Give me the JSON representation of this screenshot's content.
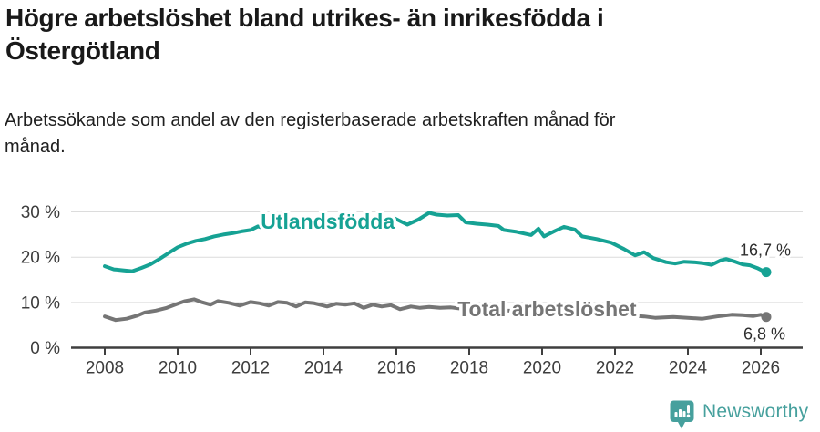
{
  "header": {
    "title": "Högre arbetslöshet bland utrikes- än inrikesfödda i Östergötland",
    "title_lines": [
      "Högre arbetslöshet bland utrikes- än inrikesfödda i",
      "Östergötland"
    ],
    "subtitle": "Arbetssökande som andel av den registerbaserade arbetskraften månad för månad.",
    "subtitle_lines": [
      "Arbetssökande som andel av den registerbaserade arbetskraften månad för",
      "månad."
    ]
  },
  "colors": {
    "teal": "#16a294",
    "gray": "#757575",
    "axis_text": "#3d3d3d",
    "axis_line": "#3f3f3f",
    "gridline": "#dcdcdc",
    "logo_teal": "#46a09d"
  },
  "footer": {
    "brand": "Newsworthy",
    "logo_icon": "bar-chart-speech-bubble-icon"
  },
  "chart_data": {
    "type": "line",
    "title": "",
    "xlabel": "",
    "ylabel": "",
    "grid": "horizontal",
    "xlim": [
      2007.3,
      2027.1
    ],
    "ylim": [
      0,
      33
    ],
    "x_ticks": [
      {
        "value": 2008,
        "label": "2008"
      },
      {
        "value": 2010,
        "label": "2010"
      },
      {
        "value": 2012,
        "label": "2012"
      },
      {
        "value": 2014,
        "label": "2014"
      },
      {
        "value": 2016,
        "label": "2016"
      },
      {
        "value": 2018,
        "label": "2018"
      },
      {
        "value": 2020,
        "label": "2020"
      },
      {
        "value": 2022,
        "label": "2022"
      },
      {
        "value": 2024,
        "label": "2024"
      },
      {
        "value": 2026,
        "label": "2026"
      }
    ],
    "y_ticks": [
      {
        "value": 0,
        "label": "0 %"
      },
      {
        "value": 10,
        "label": "10 %"
      },
      {
        "value": 20,
        "label": "20 %"
      },
      {
        "value": 30,
        "label": "30 %"
      }
    ],
    "series": [
      {
        "name": "Utlandsfödda",
        "color": "#16a294",
        "end_label": "16,7 %",
        "end_value": 16.7,
        "label_at": [
          2012.28,
          26.3
        ],
        "points": [
          [
            2008.0,
            18.0
          ],
          [
            2008.25,
            17.3
          ],
          [
            2008.5,
            17.1
          ],
          [
            2008.75,
            16.9
          ],
          [
            2009.0,
            17.6
          ],
          [
            2009.25,
            18.4
          ],
          [
            2009.5,
            19.6
          ],
          [
            2009.75,
            20.9
          ],
          [
            2010.0,
            22.2
          ],
          [
            2010.25,
            23.0
          ],
          [
            2010.5,
            23.6
          ],
          [
            2010.75,
            24.0
          ],
          [
            2011.0,
            24.6
          ],
          [
            2011.25,
            25.0
          ],
          [
            2011.5,
            25.3
          ],
          [
            2011.75,
            25.7
          ],
          [
            2012.0,
            26.0
          ],
          [
            2012.2,
            26.8
          ],
          [
            2012.4,
            26.3
          ],
          [
            2012.6,
            26.5
          ],
          [
            2012.8,
            26.6
          ],
          [
            2013.0,
            26.8
          ],
          [
            2013.5,
            27.1
          ],
          [
            2014.0,
            27.5
          ],
          [
            2014.5,
            27.9
          ],
          [
            2015.0,
            28.2
          ],
          [
            2015.5,
            28.5
          ],
          [
            2015.9,
            28.8
          ],
          [
            2016.3,
            27.2
          ],
          [
            2016.6,
            28.3
          ],
          [
            2016.9,
            29.8
          ],
          [
            2017.1,
            29.4
          ],
          [
            2017.4,
            29.2
          ],
          [
            2017.7,
            29.3
          ],
          [
            2017.9,
            27.7
          ],
          [
            2018.2,
            27.4
          ],
          [
            2018.5,
            27.2
          ],
          [
            2018.8,
            26.9
          ],
          [
            2018.95,
            26.0
          ],
          [
            2019.3,
            25.6
          ],
          [
            2019.7,
            24.9
          ],
          [
            2019.9,
            26.3
          ],
          [
            2020.05,
            24.6
          ],
          [
            2020.35,
            25.8
          ],
          [
            2020.6,
            26.7
          ],
          [
            2020.9,
            26.1
          ],
          [
            2021.1,
            24.6
          ],
          [
            2021.5,
            24.0
          ],
          [
            2021.9,
            23.2
          ],
          [
            2022.25,
            21.8
          ],
          [
            2022.55,
            20.4
          ],
          [
            2022.8,
            21.1
          ],
          [
            2023.05,
            19.8
          ],
          [
            2023.4,
            18.9
          ],
          [
            2023.65,
            18.6
          ],
          [
            2023.9,
            19.0
          ],
          [
            2024.15,
            18.9
          ],
          [
            2024.4,
            18.7
          ],
          [
            2024.65,
            18.3
          ],
          [
            2024.9,
            19.3
          ],
          [
            2025.05,
            19.6
          ],
          [
            2025.3,
            19.0
          ],
          [
            2025.5,
            18.4
          ],
          [
            2025.7,
            18.2
          ],
          [
            2025.9,
            17.6
          ],
          [
            2026.05,
            17.0
          ],
          [
            2026.15,
            16.7
          ]
        ]
      },
      {
        "name": "Total arbetslöshet",
        "color": "#757575",
        "end_label": "6,8 %",
        "end_value": 6.8,
        "label_at": [
          2017.68,
          6.95
        ],
        "points": [
          [
            2008.0,
            6.9
          ],
          [
            2008.3,
            6.1
          ],
          [
            2008.6,
            6.4
          ],
          [
            2008.9,
            7.1
          ],
          [
            2009.1,
            7.8
          ],
          [
            2009.4,
            8.2
          ],
          [
            2009.7,
            8.8
          ],
          [
            2010.0,
            9.7
          ],
          [
            2010.2,
            10.3
          ],
          [
            2010.45,
            10.7
          ],
          [
            2010.65,
            10.1
          ],
          [
            2010.9,
            9.5
          ],
          [
            2011.1,
            10.3
          ],
          [
            2011.4,
            9.9
          ],
          [
            2011.7,
            9.3
          ],
          [
            2012.0,
            10.1
          ],
          [
            2012.25,
            9.8
          ],
          [
            2012.5,
            9.3
          ],
          [
            2012.75,
            10.1
          ],
          [
            2013.0,
            9.9
          ],
          [
            2013.25,
            9.1
          ],
          [
            2013.5,
            10.0
          ],
          [
            2013.75,
            9.8
          ],
          [
            2014.1,
            9.1
          ],
          [
            2014.35,
            9.7
          ],
          [
            2014.6,
            9.5
          ],
          [
            2014.85,
            9.8
          ],
          [
            2015.1,
            8.8
          ],
          [
            2015.35,
            9.5
          ],
          [
            2015.6,
            9.1
          ],
          [
            2015.85,
            9.4
          ],
          [
            2016.1,
            8.5
          ],
          [
            2016.4,
            9.1
          ],
          [
            2016.65,
            8.8
          ],
          [
            2016.9,
            9.0
          ],
          [
            2017.2,
            8.8
          ],
          [
            2017.5,
            8.9
          ],
          [
            2017.8,
            8.6
          ],
          [
            2018.2,
            8.5
          ],
          [
            2018.6,
            8.4
          ],
          [
            2019.0,
            8.2
          ],
          [
            2019.5,
            8.1
          ],
          [
            2020.0,
            8.4
          ],
          [
            2020.5,
            8.7
          ],
          [
            2021.0,
            8.2
          ],
          [
            2021.5,
            7.8
          ],
          [
            2022.0,
            7.4
          ],
          [
            2022.45,
            7.1
          ],
          [
            2022.8,
            6.9
          ],
          [
            2023.1,
            6.6
          ],
          [
            2023.6,
            6.8
          ],
          [
            2024.0,
            6.6
          ],
          [
            2024.4,
            6.4
          ],
          [
            2024.8,
            6.9
          ],
          [
            2025.2,
            7.3
          ],
          [
            2025.5,
            7.2
          ],
          [
            2025.8,
            7.0
          ],
          [
            2026.0,
            7.3
          ],
          [
            2026.15,
            6.8
          ]
        ]
      }
    ]
  }
}
